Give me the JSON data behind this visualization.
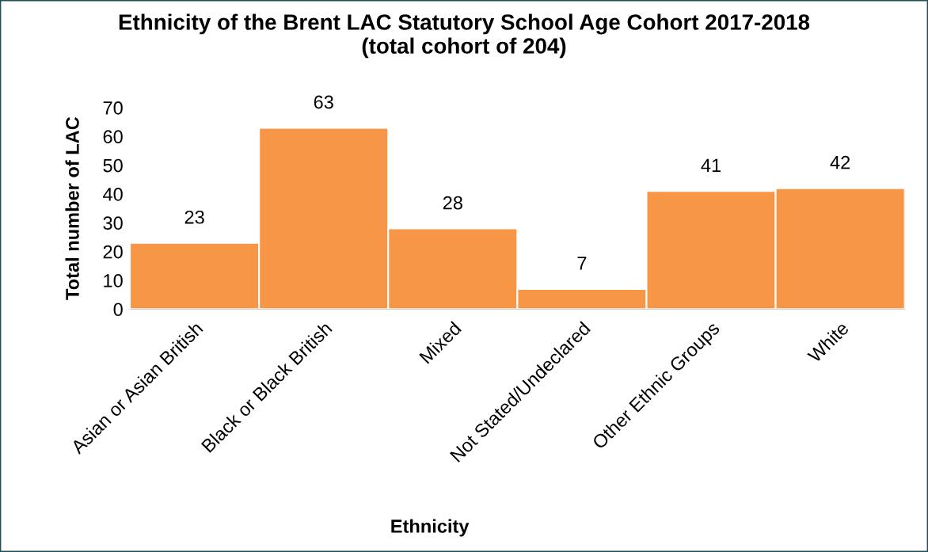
{
  "chart_data": {
    "type": "bar",
    "title": "Ethnicity of the Brent LAC Statutory School Age Cohort 2017-2018\n(total cohort of 204)",
    "xlabel": "Ethnicity",
    "ylabel": "Total number of LAC",
    "categories": [
      "Asian or Asian British",
      "Black or Black British",
      "Mixed",
      "Not Stated/Undeclared",
      "Other Ethnic Groups",
      "White"
    ],
    "values": [
      23,
      63,
      28,
      7,
      41,
      42
    ],
    "color": "#f79646",
    "ylim": [
      0,
      70
    ],
    "yticks": [
      0,
      10,
      20,
      30,
      40,
      50,
      60,
      70
    ],
    "data_labels": true
  }
}
